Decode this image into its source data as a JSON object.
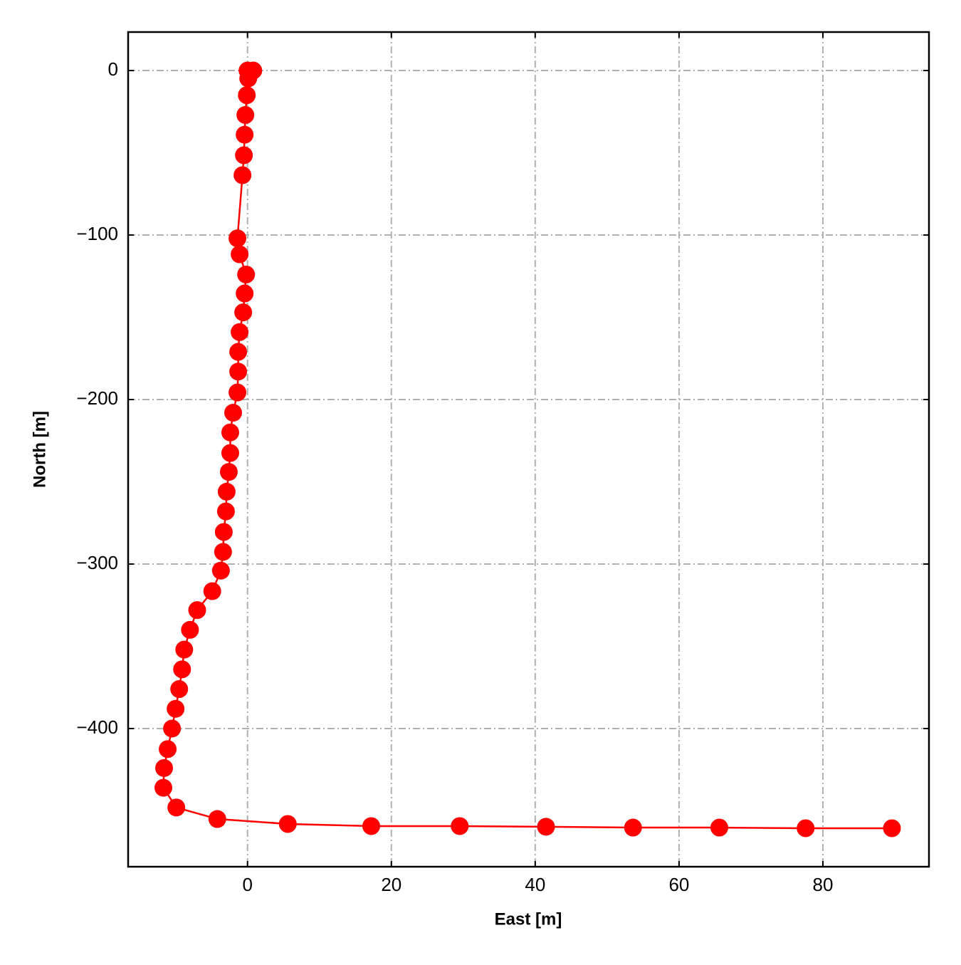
{
  "chart_data": {
    "type": "line",
    "xlabel": "East [m]",
    "ylabel": "North [m]",
    "color": "#ff0000",
    "grid": true,
    "grid_color": "#b0b0b0",
    "x": [
      0,
      0.8,
      0.1,
      -0.1,
      -0.3,
      -0.4,
      -0.5,
      -0.7,
      -1.4,
      -1.1,
      -0.2,
      -0.4,
      -0.6,
      -1.1,
      -1.3,
      -1.3,
      -1.4,
      -2,
      -2.4,
      -2.4,
      -2.6,
      -2.9,
      -3,
      -3.3,
      -3.4,
      -3.7,
      -4.9,
      -7,
      -8,
      -8.8,
      -9.1,
      -9.5,
      -10,
      -10.5,
      -11.1,
      -11.6,
      -11.7,
      -9.9,
      -4.2,
      5.6,
      17.2,
      29.5,
      41.5,
      53.6,
      65.6,
      77.6,
      89.6
    ],
    "values": [
      0,
      0,
      -4.8,
      -15,
      -27,
      -39,
      -51.5,
      -63.6,
      -102,
      -111.7,
      -124,
      -135.5,
      -147,
      -159,
      -171,
      -183,
      -195.7,
      -208,
      -220,
      -232.5,
      -244,
      -256,
      -268,
      -280.5,
      -292.6,
      -304,
      -316.5,
      -328,
      -340,
      -352,
      -364,
      -376,
      -388,
      -400,
      -412.5,
      -424,
      -436,
      -448,
      -455,
      -458,
      -459.3,
      -459.3,
      -459.7,
      -460.2,
      -460.2,
      -460.6,
      -460.6
    ],
    "xlim": [
      -16.6,
      94.75
    ],
    "xticks": [
      0,
      20,
      40,
      60,
      80
    ],
    "ylim": [
      -484,
      23.4
    ],
    "yticks": [
      0,
      {
        "value": -100,
        "label": "−100"
      },
      {
        "value": -200,
        "label": "−200"
      },
      {
        "value": -300,
        "label": "−300"
      },
      {
        "value": -400,
        "label": "−400"
      }
    ]
  }
}
